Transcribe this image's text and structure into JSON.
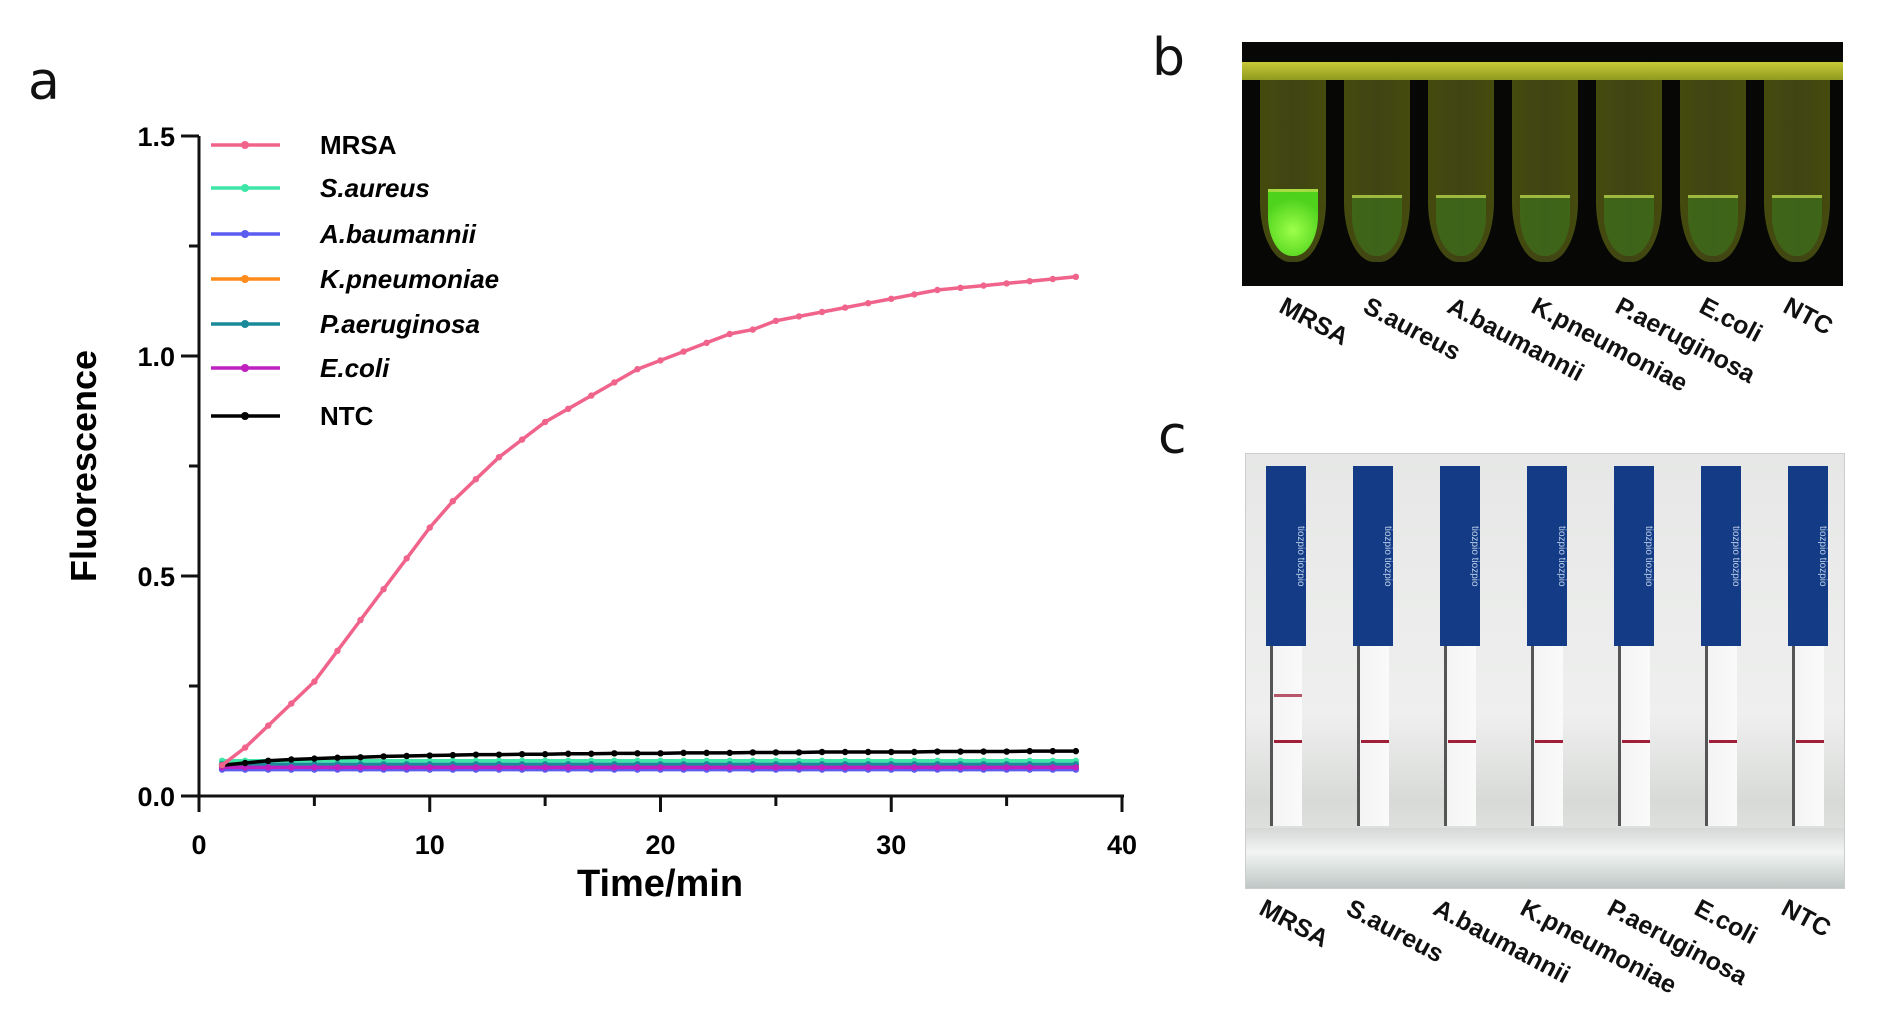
{
  "panels": {
    "a": "a",
    "b": "b",
    "c": "c"
  },
  "chart_data": {
    "type": "line",
    "title": "",
    "xlabel": "Time/min",
    "ylabel": "Fluorescence",
    "xlim": [
      0,
      40
    ],
    "ylim": [
      0,
      1.5
    ],
    "xticks": [
      0,
      10,
      20,
      30,
      40
    ],
    "yticks": [
      0.0,
      0.5,
      1.0,
      1.5
    ],
    "ytick_labels": [
      "0.0",
      "0.5",
      "1.0",
      "1.5"
    ],
    "grid": false,
    "legend_position": "top-left",
    "x": [
      1,
      2,
      3,
      4,
      5,
      6,
      7,
      8,
      9,
      10,
      11,
      12,
      13,
      14,
      15,
      16,
      17,
      18,
      19,
      20,
      21,
      22,
      23,
      24,
      25,
      26,
      27,
      28,
      29,
      30,
      31,
      32,
      33,
      34,
      35,
      36,
      37,
      38
    ],
    "series": [
      {
        "name": "MRSA",
        "italic": false,
        "color": "#f0648c",
        "values": [
          0.07,
          0.11,
          0.16,
          0.21,
          0.26,
          0.33,
          0.4,
          0.47,
          0.54,
          0.61,
          0.67,
          0.72,
          0.77,
          0.81,
          0.85,
          0.88,
          0.91,
          0.94,
          0.97,
          0.99,
          1.01,
          1.03,
          1.05,
          1.06,
          1.08,
          1.09,
          1.1,
          1.11,
          1.12,
          1.13,
          1.14,
          1.15,
          1.155,
          1.16,
          1.165,
          1.17,
          1.175,
          1.18
        ]
      },
      {
        "name": "S.aureus",
        "italic": true,
        "color": "#3ee6a8",
        "constant": 0.08
      },
      {
        "name": "A.baumannii",
        "italic": true,
        "color": "#5b5bf0",
        "constant": 0.06
      },
      {
        "name": "K.pneumoniae",
        "italic": true,
        "color": "#ff8c1a",
        "constant": 0.07
      },
      {
        "name": "P.aeruginosa",
        "italic": true,
        "color": "#1a8a9a",
        "constant": 0.072
      },
      {
        "name": "E.coli",
        "italic": true,
        "color": "#c020c0",
        "constant": 0.065
      },
      {
        "name": "NTC",
        "italic": false,
        "color": "#000000",
        "values": [
          0.07,
          0.075,
          0.08,
          0.083,
          0.085,
          0.087,
          0.088,
          0.09,
          0.091,
          0.092,
          0.093,
          0.094,
          0.094,
          0.095,
          0.095,
          0.096,
          0.096,
          0.097,
          0.097,
          0.097,
          0.098,
          0.098,
          0.098,
          0.099,
          0.099,
          0.099,
          0.1,
          0.1,
          0.1,
          0.1,
          0.1,
          0.101,
          0.101,
          0.101,
          0.101,
          0.102,
          0.102,
          0.102
        ]
      }
    ]
  },
  "panel_b": {
    "labels": [
      "MRSA",
      "S.aureus",
      "A.baumannii",
      "K.pneumoniae",
      "P.aeruginosa",
      "E.coli",
      "NTC"
    ],
    "positive": [
      true,
      false,
      false,
      false,
      false,
      false,
      false
    ]
  },
  "panel_c": {
    "labels": [
      "MRSA",
      "S.aureus",
      "A.baumannii",
      "K.pneumoniae",
      "P.aeruginosa",
      "E.coli",
      "NTC"
    ],
    "test_line": [
      true,
      false,
      false,
      false,
      false,
      false,
      false
    ],
    "strip_text": "tiozpio"
  }
}
